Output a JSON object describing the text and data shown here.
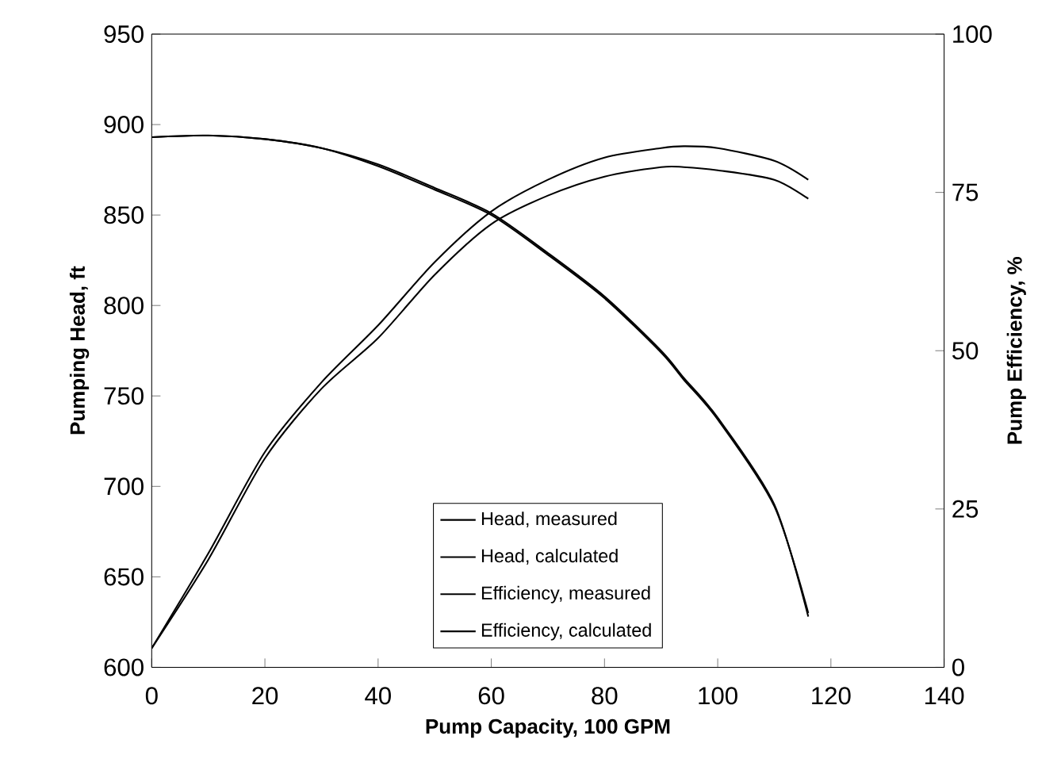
{
  "chart_data": {
    "type": "line",
    "xlabel": "Pump Capacity, 100 GPM",
    "ylabel": "Pumping Head, ft",
    "y2label": "Pump Efficiency, %",
    "xlim": [
      0,
      140
    ],
    "xticks": [
      0,
      20,
      40,
      60,
      80,
      100,
      120,
      140
    ],
    "ylim": [
      600,
      950
    ],
    "yticks": [
      600,
      650,
      700,
      750,
      800,
      850,
      900,
      950
    ],
    "y2lim": [
      0,
      100
    ],
    "y2ticks": [
      0,
      25,
      50,
      75,
      100
    ],
    "x": [
      0,
      10,
      20,
      30,
      40,
      50,
      60,
      70,
      80,
      90,
      94,
      100,
      110,
      116
    ],
    "legend": "bottom",
    "grid": false,
    "marker": "none",
    "line_style": "solid",
    "series": [
      {
        "name": "Head, measured",
        "color": "#000000",
        "values": [
          893,
          894,
          892,
          887,
          878,
          865,
          851,
          829,
          805,
          775,
          760,
          738,
          690,
          628
        ]
      },
      {
        "name": "Head, calculated",
        "color": "#000000",
        "values": [
          893,
          894,
          892,
          887,
          877,
          864,
          850,
          828,
          804,
          774,
          759,
          737,
          689,
          630
        ]
      },
      {
        "name": "Efficiency, measured",
        "color": "#000000",
        "axis": "y2",
        "values": [
          3,
          18,
          34,
          45,
          54,
          64,
          72,
          77,
          80.5,
          82,
          82.3,
          82,
          80,
          77
        ]
      },
      {
        "name": "Efficiency, calculated",
        "color": "#000000",
        "axis": "y2",
        "values": [
          3,
          17,
          33,
          44,
          52,
          62,
          70,
          74.5,
          77.5,
          79,
          79,
          78.5,
          77,
          74
        ]
      }
    ]
  }
}
